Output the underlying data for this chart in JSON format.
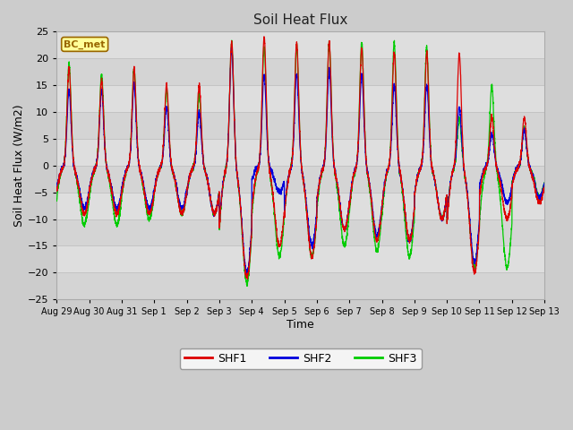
{
  "title": "Soil Heat Flux",
  "xlabel": "Time",
  "ylabel": "Soil Heat Flux (W/m2)",
  "ylim": [
    -25,
    25
  ],
  "yticks": [
    -25,
    -20,
    -15,
    -10,
    -5,
    0,
    5,
    10,
    15,
    20,
    25
  ],
  "bg_color": "#cccccc",
  "plot_bg_color": "#e0e0e0",
  "band_color_dark": "#c8c8c8",
  "band_color_light": "#d8d8d8",
  "grid_color": "#bbbbbb",
  "shf1_color": "#dd0000",
  "shf2_color": "#0000dd",
  "shf3_color": "#00cc00",
  "legend_label1": "SHF1",
  "legend_label2": "SHF2",
  "legend_label3": "SHF3",
  "box_label": "BC_met",
  "box_bg": "#ffff99",
  "box_border": "#996600",
  "xtick_labels": [
    "Aug 29",
    "Aug 30",
    "Aug 31",
    "Sep 1",
    "Sep 2",
    "Sep 3",
    "Sep 4",
    "Sep 5",
    "Sep 6",
    "Sep 7",
    "Sep 8",
    "Sep 9",
    "Sep 10",
    "Sep 11",
    "Sep 12",
    "Sep 13"
  ],
  "n_days": 15,
  "title_fontsize": 11,
  "axis_label_fontsize": 9,
  "tick_fontsize": 8
}
